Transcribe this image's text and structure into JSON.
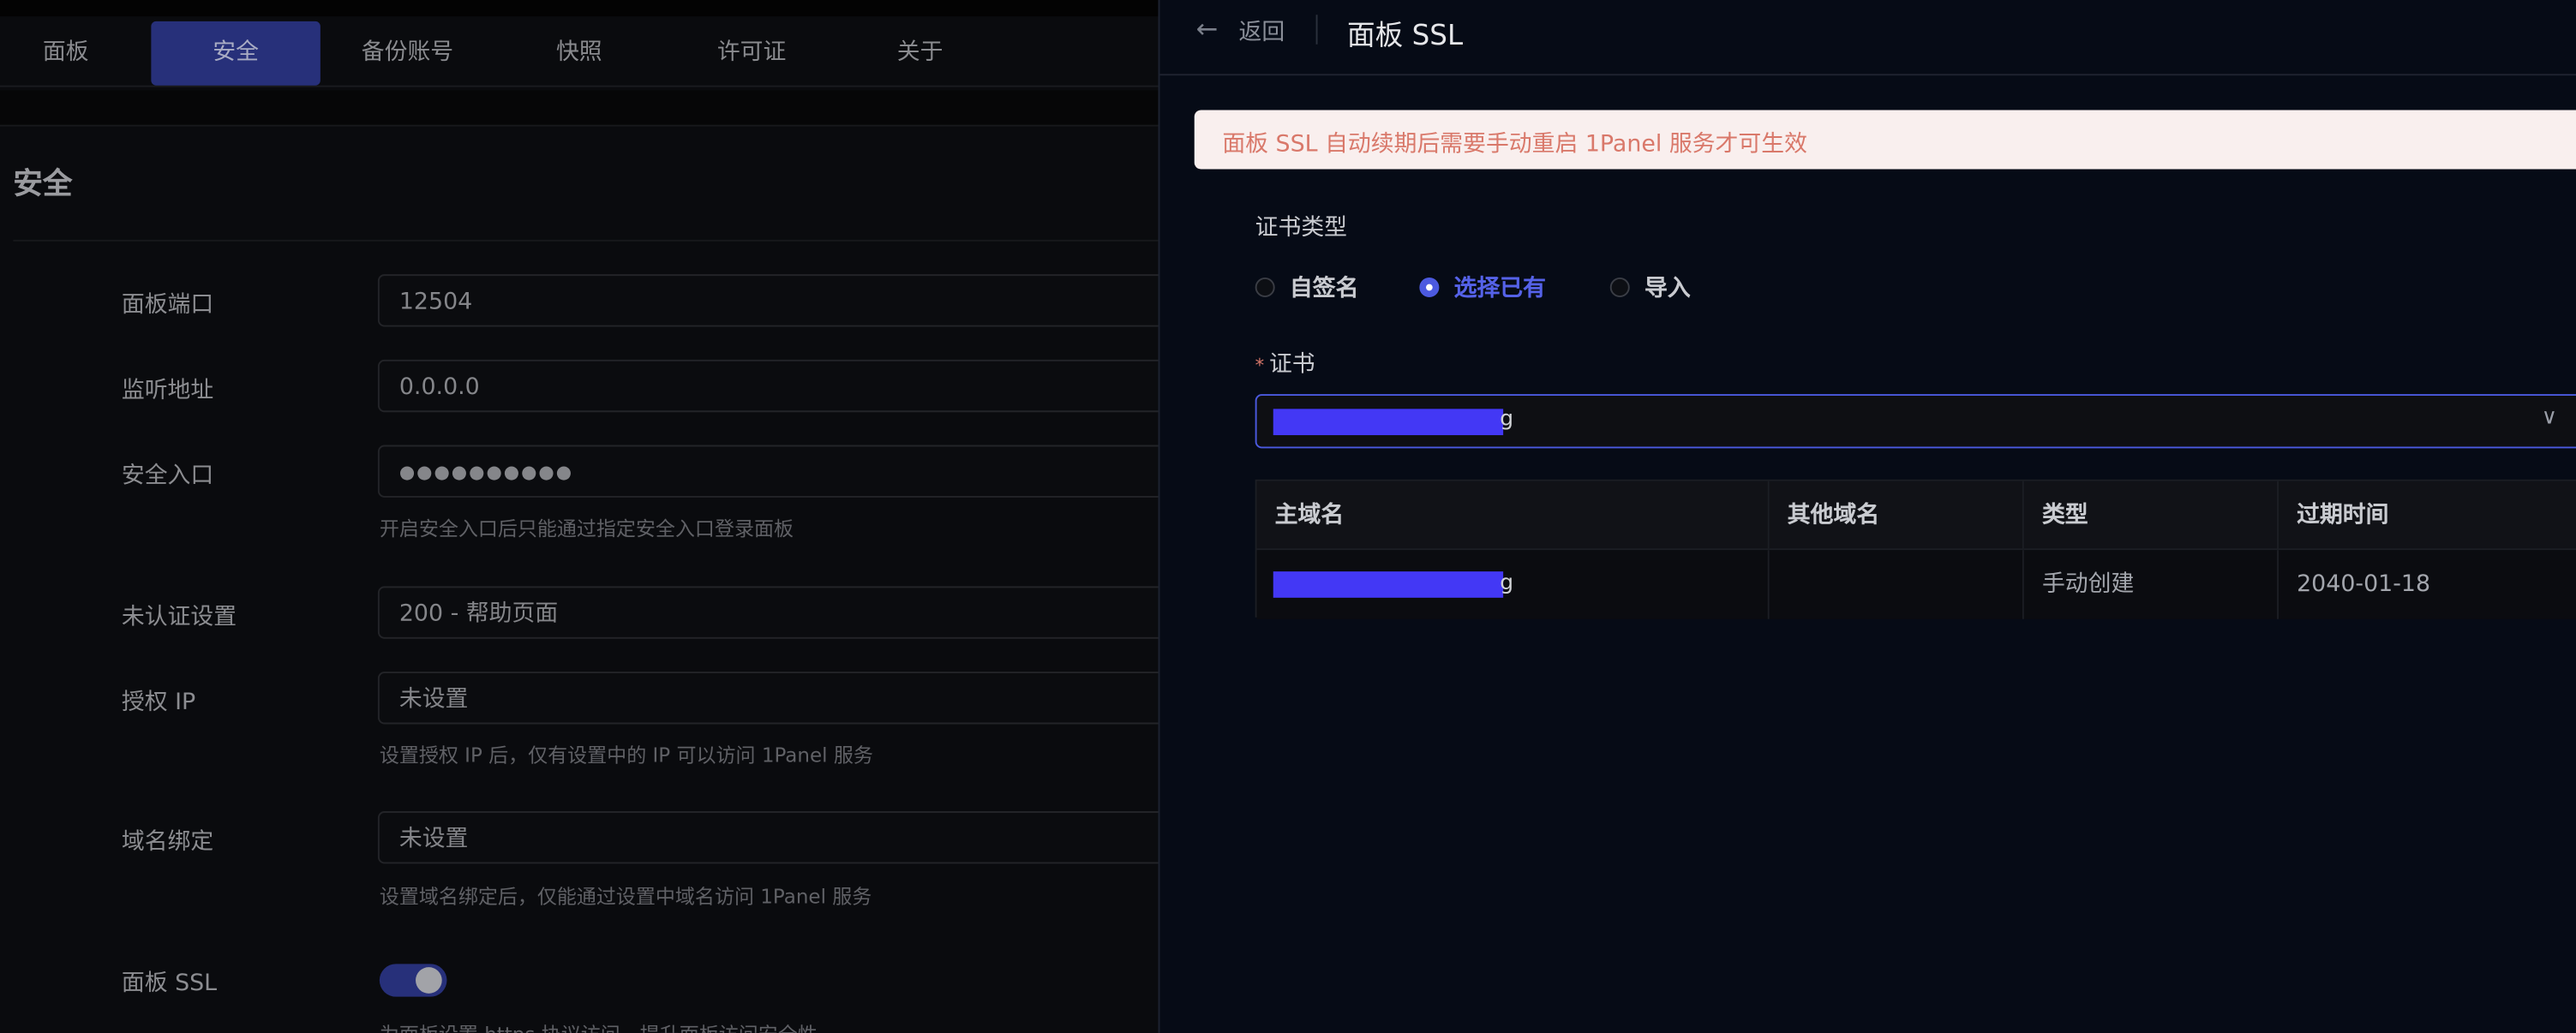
{
  "tabs": [
    "面板",
    "安全",
    "备份账号",
    "快照",
    "许可证",
    "关于"
  ],
  "active_tab": "安全",
  "section_title": "安全",
  "settings": {
    "panel_port": {
      "label": "面板端口",
      "value": "12504"
    },
    "listen_address": {
      "label": "监听地址",
      "value": "0.0.0.0"
    },
    "security_entrance": {
      "label": "安全入口",
      "value": "●●●●●●●●●●",
      "help": "开启安全入口后只能通过指定安全入口登录面板"
    },
    "unauth_setting": {
      "label": "未认证设置",
      "value": "200 - 帮助页面"
    },
    "allowed_ip": {
      "label": "授权 IP",
      "value": "未设置",
      "help": "设置授权 IP 后，仅有设置中的 IP 可以访问 1Panel 服务"
    },
    "domain_binding": {
      "label": "域名绑定",
      "value": "未设置",
      "help": "设置域名绑定后，仅能通过设置中域名访问 1Panel 服务"
    },
    "panel_ssl": {
      "label": "面板 SSL",
      "enabled": true,
      "help": "为面板设置 https 协议访问，提升面板访问安全性"
    }
  },
  "drawer": {
    "back_label": "返回",
    "title": "面板 SSL",
    "alert": "面板 SSL 自动续期后需要手动重启 1Panel 服务才可生效",
    "cert_type_label": "证书类型",
    "cert_types": [
      "自签名",
      "选择已有",
      "导入"
    ],
    "selected_cert_type": "选择已有",
    "cert_label": "证书",
    "required_mark": "*",
    "cert_value_suffix": "g",
    "table": {
      "headers": [
        "主域名",
        "其他域名",
        "类型",
        "过期时间"
      ],
      "row": {
        "main_domain_suffix": "g",
        "other_domains": "",
        "type": "手动创建",
        "expires": "2040-01-18"
      }
    }
  },
  "colors": {
    "accent": "#4c5ae0",
    "alert_text": "#d9786a",
    "alert_bg": "#f9efee",
    "redaction": "#4338f5"
  }
}
